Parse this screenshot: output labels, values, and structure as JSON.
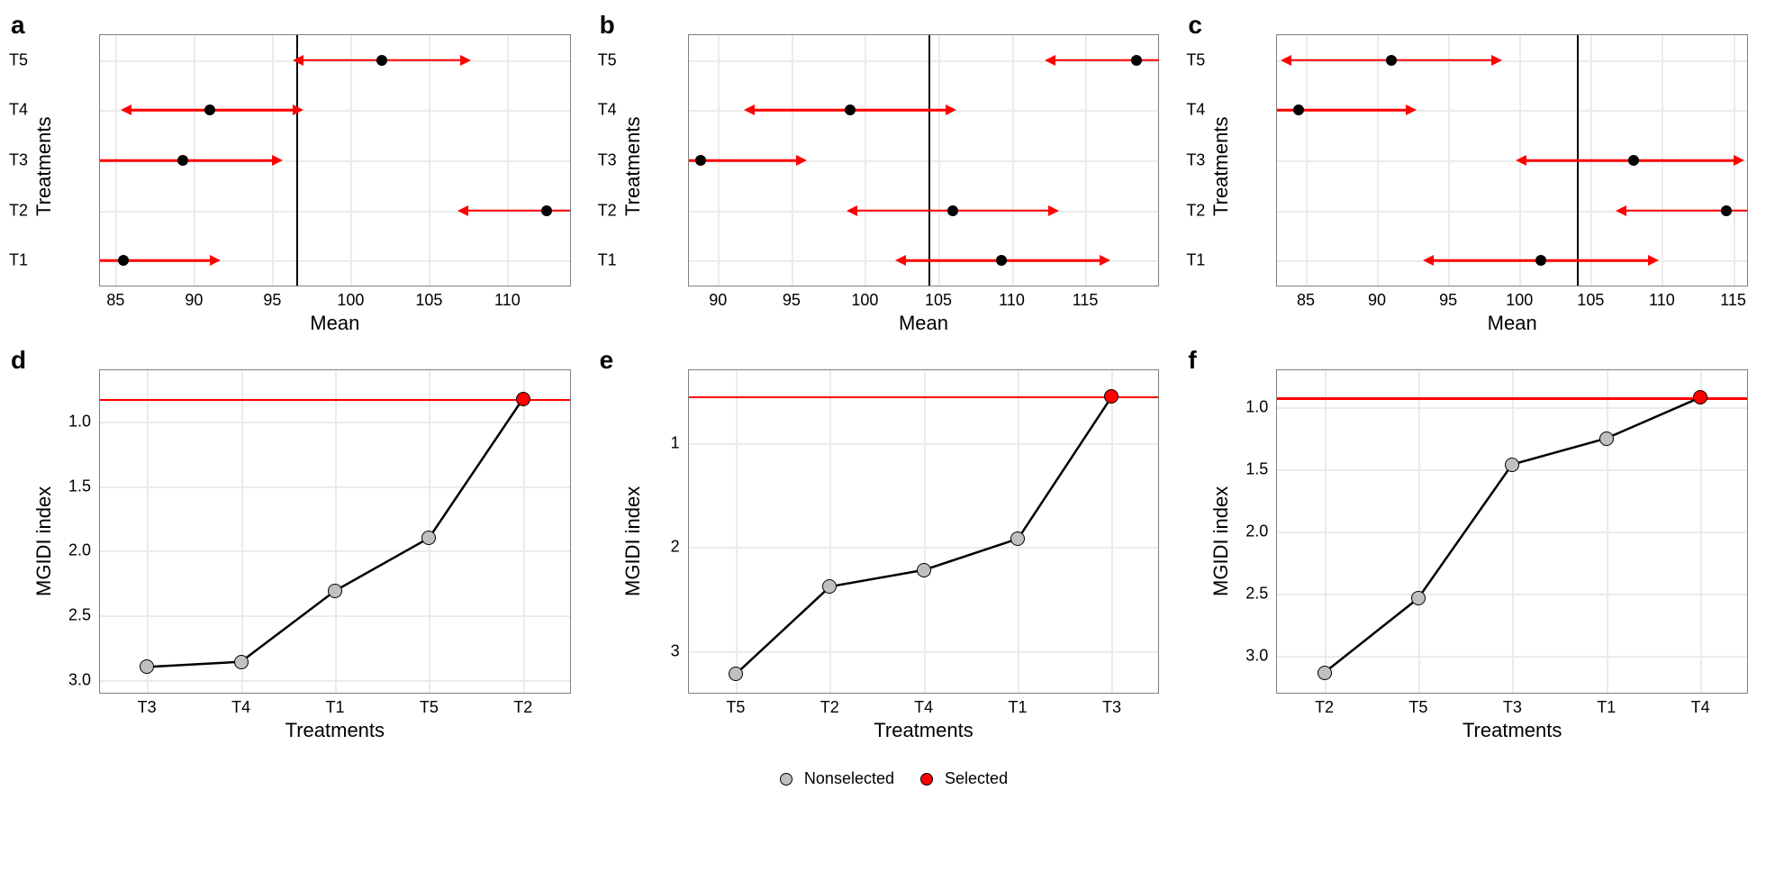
{
  "figure": {
    "background_color": "#ffffff",
    "font_family": "Arial",
    "panel_label_fontsize": 28,
    "panel_label_fontweight": "bold",
    "axis_title_fontsize": 22,
    "tick_label_fontsize": 18,
    "grid_color": "#ebebeb",
    "border_color": "#7f7f7f",
    "arrow_color": "#ff0000",
    "refline_color": "#000000",
    "selected_color": "#ff0000",
    "nonselected_color": "#c0c0c0",
    "line_color": "#000000",
    "point_size": 12
  },
  "top_row": {
    "type": "interval-dot",
    "ylabel": "Treatments",
    "xlabel": "Mean",
    "y_categories": [
      "T1",
      "T2",
      "T3",
      "T4",
      "T5"
    ],
    "panels": {
      "a": {
        "xlim": [
          84,
          114
        ],
        "xticks": [
          85,
          90,
          95,
          100,
          105,
          110
        ],
        "ref_vline": 96.5,
        "series": [
          {
            "label": "T5",
            "mean": 102,
            "lo": 97,
            "hi": 107,
            "lo_arrow": true,
            "hi_arrow": true
          },
          {
            "label": "T4",
            "mean": 91,
            "lo": 86,
            "hi": 96.3,
            "lo_arrow": true,
            "hi_arrow": true
          },
          {
            "label": "T3",
            "mean": 89.3,
            "lo": 84,
            "hi": 95,
            "lo_arrow": false,
            "hi_arrow": true
          },
          {
            "label": "T2",
            "mean": 112.5,
            "lo": 107.5,
            "hi": 114,
            "lo_arrow": true,
            "hi_arrow": false
          },
          {
            "label": "T1",
            "mean": 85.5,
            "lo": 84,
            "hi": 91,
            "lo_arrow": false,
            "hi_arrow": true
          }
        ]
      },
      "b": {
        "xlim": [
          88,
          120
        ],
        "xticks": [
          90,
          95,
          100,
          105,
          110,
          115
        ],
        "ref_vline": 104.3,
        "series": [
          {
            "label": "T5",
            "mean": 118.5,
            "lo": 113,
            "hi": 120,
            "lo_arrow": true,
            "hi_arrow": false
          },
          {
            "label": "T4",
            "mean": 99,
            "lo": 92.5,
            "hi": 105.5,
            "lo_arrow": true,
            "hi_arrow": true
          },
          {
            "label": "T3",
            "mean": 88.8,
            "lo": 88,
            "hi": 95.3,
            "lo_arrow": false,
            "hi_arrow": true
          },
          {
            "label": "T2",
            "mean": 106,
            "lo": 99.5,
            "hi": 112.5,
            "lo_arrow": true,
            "hi_arrow": true
          },
          {
            "label": "T1",
            "mean": 109.3,
            "lo": 102.8,
            "hi": 116,
            "lo_arrow": true,
            "hi_arrow": true
          }
        ]
      },
      "c": {
        "xlim": [
          83,
          116
        ],
        "xticks": [
          85,
          90,
          95,
          100,
          105,
          110,
          115
        ],
        "ref_vline": 104,
        "series": [
          {
            "label": "T5",
            "mean": 91,
            "lo": 84,
            "hi": 98,
            "lo_arrow": true,
            "hi_arrow": true
          },
          {
            "label": "T4",
            "mean": 84.5,
            "lo": 83,
            "hi": 92,
            "lo_arrow": false,
            "hi_arrow": true
          },
          {
            "label": "T3",
            "mean": 108,
            "lo": 100.5,
            "hi": 115,
            "lo_arrow": true,
            "hi_arrow": true
          },
          {
            "label": "T2",
            "mean": 114.5,
            "lo": 107.5,
            "hi": 116,
            "lo_arrow": true,
            "hi_arrow": false
          },
          {
            "label": "T1",
            "mean": 101.5,
            "lo": 94,
            "hi": 109,
            "lo_arrow": true,
            "hi_arrow": true
          }
        ]
      }
    }
  },
  "bottom_row": {
    "type": "line",
    "ylabel": "MGIDI index",
    "xlabel": "Treatments",
    "y_reversed": true,
    "panels": {
      "d": {
        "x_order": [
          "T3",
          "T4",
          "T1",
          "T5",
          "T2"
        ],
        "ylim": [
          0.6,
          3.1
        ],
        "yticks": [
          1.0,
          1.5,
          2.0,
          2.5,
          3.0
        ],
        "ref_hline": 0.82,
        "points": [
          {
            "label": "T3",
            "y": 2.9,
            "selected": false
          },
          {
            "label": "T4",
            "y": 2.86,
            "selected": false
          },
          {
            "label": "T1",
            "y": 2.31,
            "selected": false
          },
          {
            "label": "T5",
            "y": 1.9,
            "selected": false
          },
          {
            "label": "T2",
            "y": 0.82,
            "selected": true
          }
        ]
      },
      "e": {
        "x_order": [
          "T5",
          "T2",
          "T4",
          "T1",
          "T3"
        ],
        "ylim": [
          0.3,
          3.4
        ],
        "yticks": [
          1,
          2,
          3
        ],
        "ref_hline": 0.55,
        "points": [
          {
            "label": "T5",
            "y": 3.22,
            "selected": false
          },
          {
            "label": "T2",
            "y": 2.38,
            "selected": false
          },
          {
            "label": "T4",
            "y": 2.22,
            "selected": false
          },
          {
            "label": "T1",
            "y": 1.92,
            "selected": false
          },
          {
            "label": "T3",
            "y": 0.55,
            "selected": true
          }
        ]
      },
      "f": {
        "x_order": [
          "T2",
          "T5",
          "T3",
          "T1",
          "T4"
        ],
        "ylim": [
          0.7,
          3.3
        ],
        "yticks": [
          1.0,
          1.5,
          2.0,
          2.5,
          3.0
        ],
        "ref_hline": 0.92,
        "points": [
          {
            "label": "T2",
            "y": 3.14,
            "selected": false
          },
          {
            "label": "T5",
            "y": 2.54,
            "selected": false
          },
          {
            "label": "T3",
            "y": 1.46,
            "selected": false
          },
          {
            "label": "T1",
            "y": 1.25,
            "selected": false
          },
          {
            "label": "T4",
            "y": 0.92,
            "selected": true
          }
        ]
      }
    }
  },
  "legend": {
    "items": [
      {
        "label": "Nonselected",
        "color": "#c0c0c0"
      },
      {
        "label": "Selected",
        "color": "#ff0000"
      }
    ]
  }
}
